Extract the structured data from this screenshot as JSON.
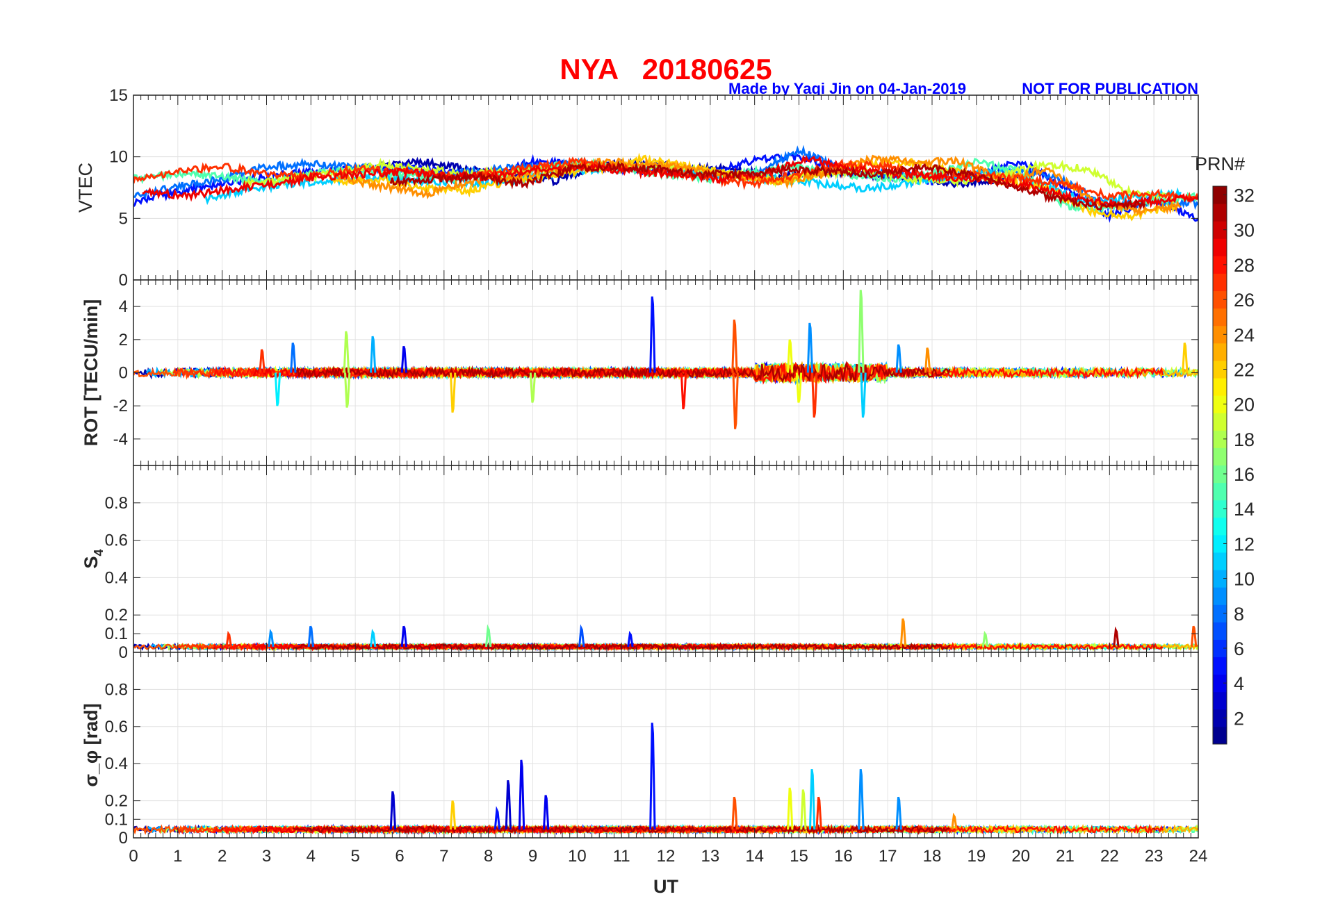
{
  "title": "NYA   20180625",
  "credit": "Made by Yaqi Jin on 04-Jan-2019",
  "notice": "NOT FOR PUBLICATION",
  "colors": {
    "title": "#ff0000",
    "credit": "#0000ff",
    "grid": "#dcdcdc",
    "axis": "#262626"
  },
  "chart_data": {
    "type": "line",
    "xlabel": "UT",
    "xlim": [
      0,
      24
    ],
    "xticks": [
      "0",
      "1",
      "2",
      "3",
      "4",
      "5",
      "6",
      "7",
      "8",
      "9",
      "10",
      "11",
      "12",
      "13",
      "14",
      "15",
      "16",
      "17",
      "18",
      "19",
      "20",
      "21",
      "22",
      "23",
      "24"
    ],
    "colorbar": {
      "label": "PRN#",
      "range": [
        1,
        32
      ],
      "ticks": [
        "2",
        "4",
        "6",
        "8",
        "10",
        "12",
        "14",
        "16",
        "18",
        "20",
        "22",
        "24",
        "26",
        "28",
        "30",
        "32"
      ],
      "colormap": "jet"
    },
    "panels": [
      {
        "id": "vtec",
        "ylabel": "VTEC",
        "ylim": [
          0,
          15
        ],
        "yticks": [
          0,
          5,
          10,
          15
        ],
        "yticklabels": [
          "0",
          "5",
          "10",
          "15"
        ],
        "series": [
          {
            "prn": 2,
            "start": 5.5,
            "values": [
              9.2,
              9.6,
              9.0,
              8.6,
              8.0,
              9.4,
              9.5,
              9.0,
              9.0,
              8.4,
              8.8,
              8.6,
              8.4,
              7.8,
              8.2,
              8.8
            ]
          },
          {
            "prn": 5,
            "start": 0,
            "values": [
              6.2,
              7.2,
              7.8,
              8.4,
              8.8,
              9.0,
              9.2,
              8.8,
              8.6,
              9.6,
              9.4,
              9.0,
              8.8,
              8.6,
              9.8,
              10.0,
              9.0,
              8.4,
              8.0,
              8.6,
              9.6,
              7.6,
              5.2,
              6.6,
              5.0
            ]
          },
          {
            "prn": 8,
            "start": 0,
            "values": [
              6.8,
              7.6,
              8.2,
              9.2,
              9.4,
              9.2,
              9.0,
              8.6,
              9.0,
              9.2,
              9.4,
              9.2,
              8.8,
              8.4,
              8.6,
              10.6,
              8.8,
              8.6,
              8.2,
              8.4,
              9.0,
              8.0,
              6.0,
              6.4,
              6.2
            ]
          },
          {
            "prn": 11,
            "start": 1.6,
            "values": [
              6.5,
              7.4,
              7.8,
              8.2,
              8.4,
              8.0,
              7.8,
              8.0,
              8.8,
              9.0,
              9.2,
              8.8,
              8.4,
              8.2,
              7.8,
              7.4,
              8.0,
              8.4,
              8.8,
              7.6,
              6.2,
              6.8,
              7.0
            ]
          },
          {
            "prn": 15,
            "start": 0,
            "values": [
              8.2,
              8.6,
              8.4,
              8.0,
              8.6,
              9.0,
              8.6,
              8.2,
              8.4,
              9.0,
              9.6,
              9.0,
              8.6,
              8.2,
              8.8,
              9.2,
              8.6,
              8.2,
              8.6,
              9.6,
              8.8,
              6.0,
              5.8,
              6.4,
              6.8
            ]
          },
          {
            "prn": 19,
            "start": 2.5,
            "values": [
              7.8,
              8.2,
              8.6,
              9.4,
              9.0,
              8.6,
              8.8,
              9.0,
              9.2,
              9.4,
              9.0,
              8.6,
              8.0,
              8.6,
              9.0,
              8.2,
              8.0,
              8.4,
              9.4,
              9.0,
              7.0,
              6.6
            ]
          },
          {
            "prn": 22,
            "start": 4.5,
            "values": [
              8.0,
              8.2,
              7.4,
              7.2,
              8.0,
              8.6,
              9.0,
              9.8,
              9.2,
              8.6,
              8.0,
              8.8,
              9.4,
              9.6,
              8.8,
              8.0,
              7.6,
              5.6,
              5.2,
              6.0
            ]
          },
          {
            "prn": 24,
            "start": 4.6,
            "values": [
              8.4,
              7.6,
              7.0,
              8.0,
              8.4,
              9.0,
              9.6,
              9.4,
              9.0,
              8.4,
              7.8,
              8.6,
              9.8,
              9.6,
              9.6,
              8.2,
              9.0,
              6.4,
              5.6,
              6.0
            ]
          },
          {
            "prn": 27,
            "start": 0,
            "values": [
              8.0,
              8.8,
              9.2,
              8.6,
              8.4,
              9.0,
              8.8,
              8.4,
              8.6,
              9.2,
              9.6,
              9.0,
              8.8,
              8.2,
              7.8,
              8.6,
              9.4,
              9.2,
              8.4,
              8.6,
              8.2,
              7.8,
              6.8,
              7.0,
              6.6
            ]
          },
          {
            "prn": 29,
            "start": 0.2,
            "values": [
              7.2,
              6.8,
              7.4,
              7.8,
              8.4,
              8.6,
              8.8,
              8.4,
              8.4,
              9.0,
              9.2,
              8.8,
              8.6,
              8.2,
              8.6,
              9.8,
              9.0,
              8.6,
              8.4,
              8.2,
              7.6,
              6.6,
              6.2,
              6.4,
              6.8
            ]
          },
          {
            "prn": 31,
            "start": 5.8,
            "values": [
              8.0,
              8.2,
              8.4,
              7.8,
              9.0,
              9.2,
              9.0,
              8.6,
              8.6,
              9.0,
              8.8,
              8.6,
              9.2,
              8.6,
              7.6,
              6.6,
              6.0,
              6.2
            ]
          }
        ]
      },
      {
        "id": "rot",
        "ylabel": "ROT [TECU/min]",
        "ylim": [
          -5.6,
          5.6
        ],
        "yticks": [
          -4,
          -2,
          0,
          2,
          4
        ],
        "yticklabels": [
          "-4",
          "-2",
          "0",
          "2",
          "4"
        ],
        "baseline": 0,
        "noise": 0.25,
        "spikes": [
          [
            11.7,
            4.6,
            5
          ],
          [
            13.55,
            3.2,
            26
          ],
          [
            13.57,
            -3.4,
            26
          ],
          [
            16.4,
            5.0,
            17
          ],
          [
            15.25,
            3.0,
            9
          ],
          [
            15.35,
            -2.7,
            27
          ],
          [
            12.4,
            -2.2,
            28
          ],
          [
            3.6,
            1.8,
            8
          ],
          [
            3.25,
            -2.0,
            12
          ],
          [
            4.8,
            2.5,
            18
          ],
          [
            4.82,
            -2.1,
            18
          ],
          [
            5.4,
            2.2,
            10
          ],
          [
            7.2,
            -2.4,
            22
          ],
          [
            16.45,
            -2.7,
            11
          ],
          [
            9.0,
            -1.8,
            18
          ],
          [
            2.9,
            1.4,
            27
          ],
          [
            6.1,
            1.6,
            4
          ],
          [
            17.25,
            1.7,
            9
          ],
          [
            17.9,
            1.5,
            24
          ],
          [
            23.7,
            1.8,
            22
          ],
          [
            15.0,
            -1.8,
            20
          ],
          [
            14.8,
            2.0,
            20
          ]
        ]
      },
      {
        "id": "s4",
        "ylabel": "S4",
        "ylim": [
          0,
          1
        ],
        "yticks": [
          0,
          0.1,
          0.2,
          0.4,
          0.6,
          0.8
        ],
        "yticklabels": [
          "0",
          "0.1",
          "0.2",
          "0.4",
          "0.6",
          "0.8"
        ],
        "baseline": 0.03,
        "noise": 0.012,
        "spikes": [
          [
            6.1,
            0.14,
            4
          ],
          [
            4.0,
            0.14,
            8
          ],
          [
            10.1,
            0.13,
            7
          ],
          [
            17.35,
            0.18,
            24
          ],
          [
            22.15,
            0.12,
            31
          ],
          [
            23.9,
            0.14,
            26
          ],
          [
            2.15,
            0.1,
            27
          ],
          [
            8.0,
            0.13,
            16
          ],
          [
            5.4,
            0.11,
            11
          ],
          [
            3.1,
            0.11,
            9
          ],
          [
            11.2,
            0.1,
            5
          ],
          [
            19.2,
            0.1,
            17
          ]
        ]
      },
      {
        "id": "sigma",
        "ylabel": "σ_φ [rad]",
        "ylim": [
          0,
          1
        ],
        "yticks": [
          0,
          0.1,
          0.2,
          0.4,
          0.6,
          0.8
        ],
        "yticklabels": [
          "0",
          "0.1",
          "0.2",
          "0.4",
          "0.6",
          "0.8"
        ],
        "baseline": 0.045,
        "noise": 0.015,
        "spikes": [
          [
            11.7,
            0.62,
            5
          ],
          [
            8.75,
            0.42,
            4
          ],
          [
            8.45,
            0.31,
            3
          ],
          [
            5.85,
            0.25,
            3
          ],
          [
            15.3,
            0.37,
            11
          ],
          [
            16.4,
            0.37,
            9
          ],
          [
            13.55,
            0.22,
            26
          ],
          [
            17.25,
            0.22,
            9
          ],
          [
            14.8,
            0.27,
            20
          ],
          [
            15.45,
            0.22,
            27
          ],
          [
            9.3,
            0.23,
            4
          ],
          [
            7.2,
            0.2,
            22
          ],
          [
            8.2,
            0.15,
            5
          ],
          [
            15.1,
            0.26,
            19
          ],
          [
            18.5,
            0.12,
            24
          ]
        ]
      }
    ]
  }
}
